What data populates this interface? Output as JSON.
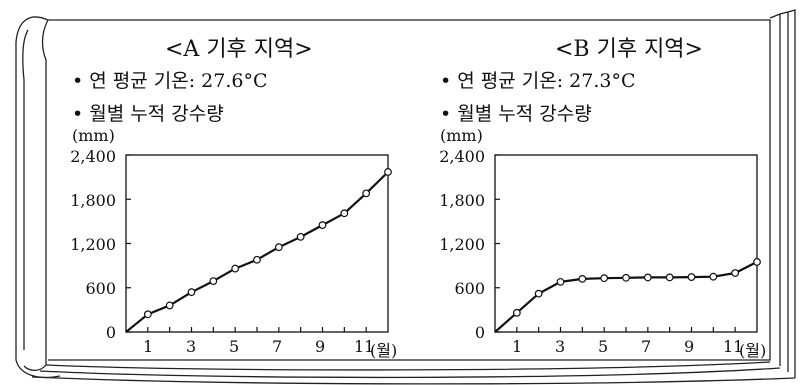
{
  "chart_data": [
    {
      "type": "line",
      "title": "<A 기후 지역>",
      "stats": [
        "• 연 평균 기온: 27.6°C",
        "• 월별 누적 강수량"
      ],
      "ylabel": "(mm)",
      "xlabel": "(월)",
      "ylim": [
        0,
        2400
      ],
      "yticks": [
        "0",
        "600",
        "1,200",
        "1,800",
        "2,400"
      ],
      "xticks": [
        "1",
        "3",
        "5",
        "7",
        "9",
        "11"
      ],
      "x": [
        0,
        1,
        2,
        3,
        4,
        5,
        6,
        7,
        8,
        9,
        10,
        11,
        12
      ],
      "values": [
        0,
        240,
        360,
        540,
        690,
        860,
        980,
        1150,
        1290,
        1450,
        1610,
        1880,
        2170
      ],
      "grid": false,
      "colors": {
        "line": "#111111",
        "marker_fill": "#ffffff"
      }
    },
    {
      "type": "line",
      "title": "<B 기후 지역>",
      "stats": [
        "• 연 평균 기온: 27.3°C",
        "• 월별 누적 강수량"
      ],
      "ylabel": "(mm)",
      "xlabel": "(월)",
      "ylim": [
        0,
        2400
      ],
      "yticks": [
        "0",
        "600",
        "1,200",
        "1,800",
        "2,400"
      ],
      "xticks": [
        "1",
        "3",
        "5",
        "7",
        "9",
        "11"
      ],
      "x": [
        0,
        1,
        2,
        3,
        4,
        5,
        6,
        7,
        8,
        9,
        10,
        11,
        12
      ],
      "values": [
        0,
        260,
        520,
        680,
        720,
        730,
        735,
        740,
        740,
        745,
        750,
        800,
        950
      ],
      "grid": false,
      "colors": {
        "line": "#111111",
        "marker_fill": "#ffffff"
      }
    }
  ]
}
